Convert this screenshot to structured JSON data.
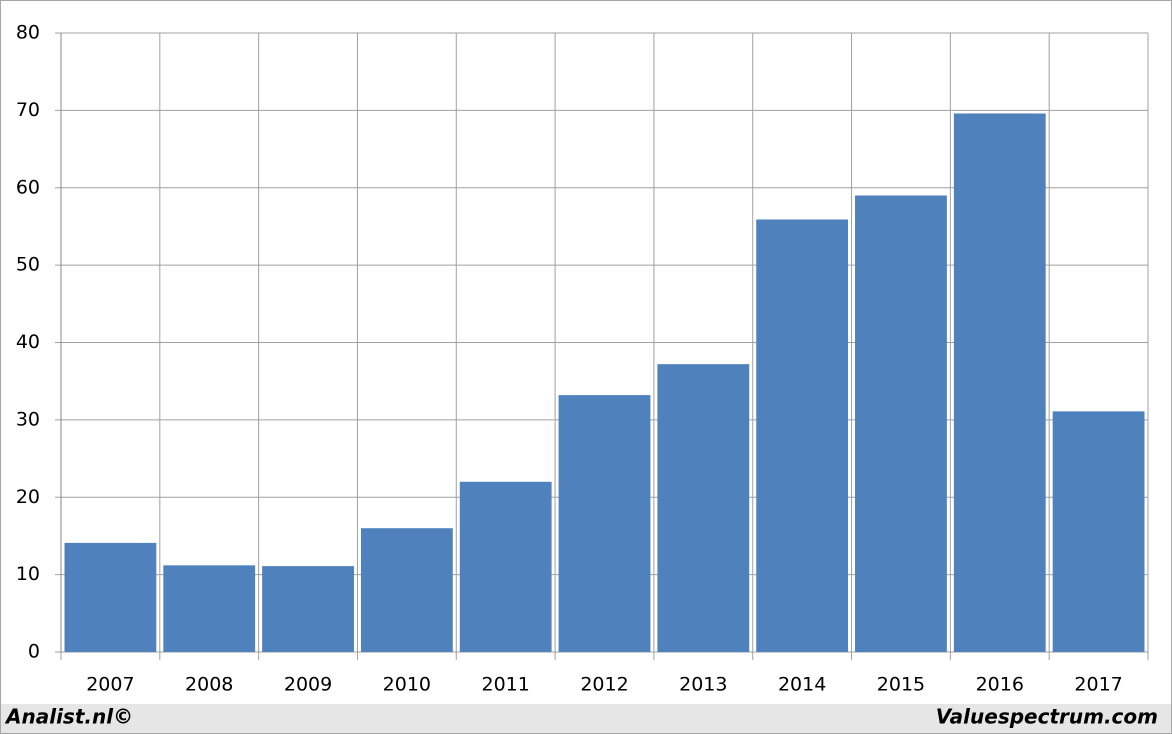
{
  "chart_data": {
    "type": "bar",
    "categories": [
      "2007",
      "2008",
      "2009",
      "2010",
      "2011",
      "2012",
      "2013",
      "2014",
      "2015",
      "2016",
      "2017"
    ],
    "values": [
      14.1,
      11.2,
      11.1,
      16.0,
      22.0,
      33.2,
      37.2,
      55.9,
      59.0,
      69.6,
      31.1
    ],
    "color": "#4f81bd",
    "ylim": [
      0,
      80
    ],
    "yticks": [
      0,
      10,
      20,
      30,
      40,
      50,
      60,
      70,
      80
    ],
    "grid": true,
    "footer": {
      "left": "Analist.nl©",
      "right": "Valuespectrum.com"
    }
  }
}
